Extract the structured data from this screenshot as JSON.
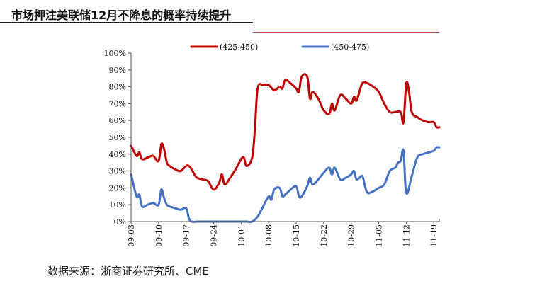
{
  "title": "市场押注美联储12月不降息的概率持续提升",
  "source": "数据来源：浙商证券研究所、CME",
  "chart_data": {
    "type": "line",
    "title": "市场押注美联储12月不降息的概率持续提升",
    "xlabel": "",
    "ylabel": "",
    "ylim": [
      0,
      100
    ],
    "yticks": [
      "0%",
      "10%",
      "20%",
      "30%",
      "40%",
      "50%",
      "60%",
      "70%",
      "80%",
      "90%",
      "100%"
    ],
    "xticks": [
      "09-03",
      "09-10",
      "09-17",
      "09-24",
      "10-01",
      "10-08",
      "10-15",
      "10-22",
      "10-29",
      "11-05",
      "11-12",
      "11-19"
    ],
    "legend": "top",
    "grid": false,
    "series": [
      {
        "name": "(425-450)",
        "color": "#c00000",
        "points": [
          [
            0,
            45
          ],
          [
            1,
            39
          ],
          [
            1.5,
            41
          ],
          [
            2,
            37
          ],
          [
            3,
            38
          ],
          [
            4,
            39
          ],
          [
            5,
            36
          ],
          [
            5.5,
            46
          ],
          [
            6,
            43
          ],
          [
            6.5,
            35
          ],
          [
            7,
            33
          ],
          [
            8,
            31
          ],
          [
            9,
            30
          ],
          [
            10,
            33
          ],
          [
            10.5,
            33
          ],
          [
            11,
            31
          ],
          [
            11.5,
            28
          ],
          [
            12,
            26
          ],
          [
            13,
            25
          ],
          [
            14,
            24
          ],
          [
            15,
            19
          ],
          [
            16,
            23
          ],
          [
            16.5,
            28
          ],
          [
            17,
            22
          ],
          [
            18,
            26
          ],
          [
            19,
            31
          ],
          [
            20,
            37
          ],
          [
            20.5,
            38
          ],
          [
            21,
            33
          ],
          [
            22,
            38
          ],
          [
            22.5,
            55
          ],
          [
            23,
            79
          ],
          [
            24,
            81
          ],
          [
            25,
            81
          ],
          [
            26,
            78
          ],
          [
            27,
            80
          ],
          [
            27.5,
            79
          ],
          [
            28,
            84
          ],
          [
            29,
            82
          ],
          [
            30,
            79
          ],
          [
            30.5,
            77
          ],
          [
            31,
            86
          ],
          [
            32,
            86
          ],
          [
            32.5,
            73
          ],
          [
            33,
            77
          ],
          [
            34,
            73
          ],
          [
            35,
            66
          ],
          [
            36,
            64
          ],
          [
            36.5,
            70
          ],
          [
            37,
            66
          ],
          [
            38,
            75
          ],
          [
            39,
            73
          ],
          [
            40,
            70
          ],
          [
            40.5,
            74
          ],
          [
            41,
            72
          ],
          [
            42,
            82
          ],
          [
            43,
            82
          ],
          [
            44,
            80
          ],
          [
            45,
            77
          ],
          [
            46,
            70
          ],
          [
            47,
            65
          ],
          [
            48,
            65
          ],
          [
            49,
            65
          ],
          [
            49.5,
            59
          ],
          [
            50,
            82
          ],
          [
            50.5,
            77
          ],
          [
            51,
            65
          ],
          [
            52,
            62
          ],
          [
            53,
            60
          ],
          [
            54,
            59
          ],
          [
            55,
            59
          ],
          [
            55.5,
            56
          ],
          [
            56,
            56
          ]
        ]
      },
      {
        "name": "(450-475)",
        "color": "#4472c4",
        "points": [
          [
            0,
            28
          ],
          [
            1,
            15
          ],
          [
            1.5,
            16
          ],
          [
            2,
            9
          ],
          [
            3,
            10
          ],
          [
            4,
            11
          ],
          [
            5,
            10
          ],
          [
            5.5,
            19
          ],
          [
            6,
            14
          ],
          [
            6.5,
            10
          ],
          [
            7,
            9
          ],
          [
            8,
            8
          ],
          [
            9,
            7
          ],
          [
            10,
            8
          ],
          [
            10.5,
            2
          ],
          [
            11,
            0
          ],
          [
            12,
            0
          ],
          [
            13,
            0
          ],
          [
            14,
            0
          ],
          [
            15,
            0
          ],
          [
            16,
            0
          ],
          [
            17,
            0
          ],
          [
            18,
            0
          ],
          [
            19,
            0
          ],
          [
            20,
            0
          ],
          [
            21,
            0
          ],
          [
            22,
            0
          ],
          [
            23,
            3
          ],
          [
            24,
            9
          ],
          [
            25,
            15
          ],
          [
            25.5,
            13
          ],
          [
            26,
            19
          ],
          [
            27,
            20
          ],
          [
            27.5,
            15
          ],
          [
            28,
            16
          ],
          [
            29,
            19
          ],
          [
            30,
            21
          ],
          [
            30.5,
            15
          ],
          [
            31,
            15
          ],
          [
            32,
            21
          ],
          [
            32.5,
            26
          ],
          [
            33,
            22
          ],
          [
            34,
            25
          ],
          [
            35,
            29
          ],
          [
            36,
            32
          ],
          [
            36.5,
            28
          ],
          [
            37,
            32
          ],
          [
            38,
            25
          ],
          [
            39,
            26
          ],
          [
            40,
            28
          ],
          [
            40.5,
            30
          ],
          [
            41,
            25
          ],
          [
            42,
            27
          ],
          [
            42.5,
            21
          ],
          [
            43,
            17
          ],
          [
            44,
            18
          ],
          [
            45,
            20
          ],
          [
            46,
            22
          ],
          [
            47,
            30
          ],
          [
            48,
            32
          ],
          [
            48.5,
            35
          ],
          [
            49,
            36
          ],
          [
            49.5,
            42
          ],
          [
            50,
            17
          ],
          [
            51,
            27
          ],
          [
            52,
            38
          ],
          [
            53,
            40
          ],
          [
            54,
            41
          ],
          [
            55,
            42
          ],
          [
            55.5,
            44
          ],
          [
            56,
            44
          ]
        ]
      }
    ]
  }
}
